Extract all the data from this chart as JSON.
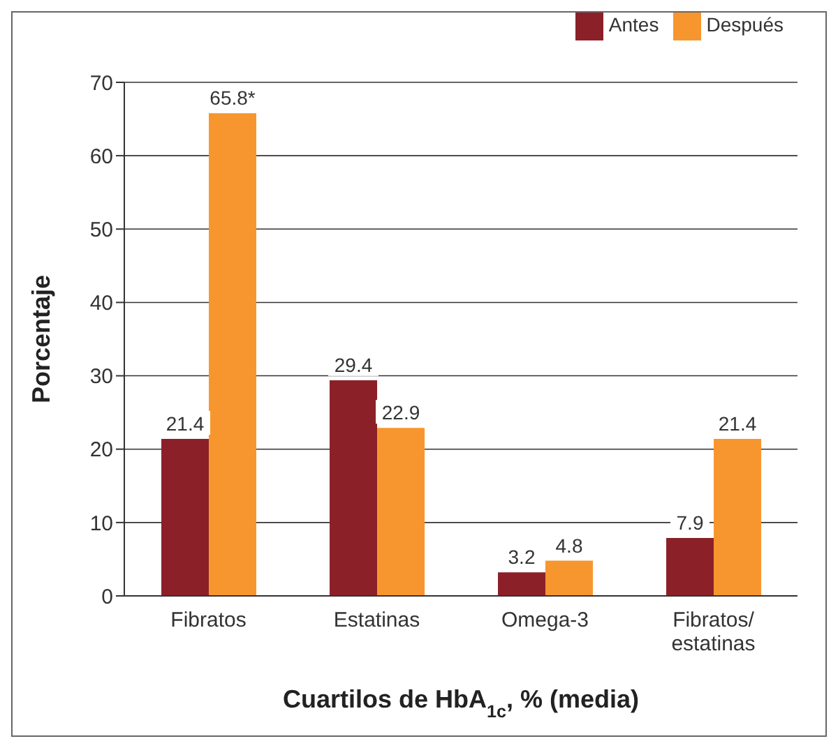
{
  "chart_data": {
    "type": "bar",
    "categories": [
      "Fibratos",
      "Estatinas",
      "Omega-3",
      "Fibratos/ estatinas"
    ],
    "series": [
      {
        "name": "Antes",
        "color": "#8b2028",
        "values": [
          21.4,
          29.4,
          3.2,
          7.9
        ],
        "value_labels": [
          "21.4",
          "29.4",
          "3.2",
          "7.9"
        ]
      },
      {
        "name": "Después",
        "color": "#f7962e",
        "values": [
          65.8,
          22.9,
          4.8,
          21.4
        ],
        "value_labels": [
          "65.8*",
          "22.9",
          "4.8",
          "21.4"
        ]
      }
    ],
    "xlabel": "Cuartilos de HbA$_{1c}$, % (media)",
    "ylabel": "Porcentaje",
    "ylim": [
      0,
      70
    ],
    "yticks": [
      0,
      10,
      20,
      30,
      40,
      50,
      60,
      70
    ],
    "grid": "y",
    "legend": "top right"
  }
}
